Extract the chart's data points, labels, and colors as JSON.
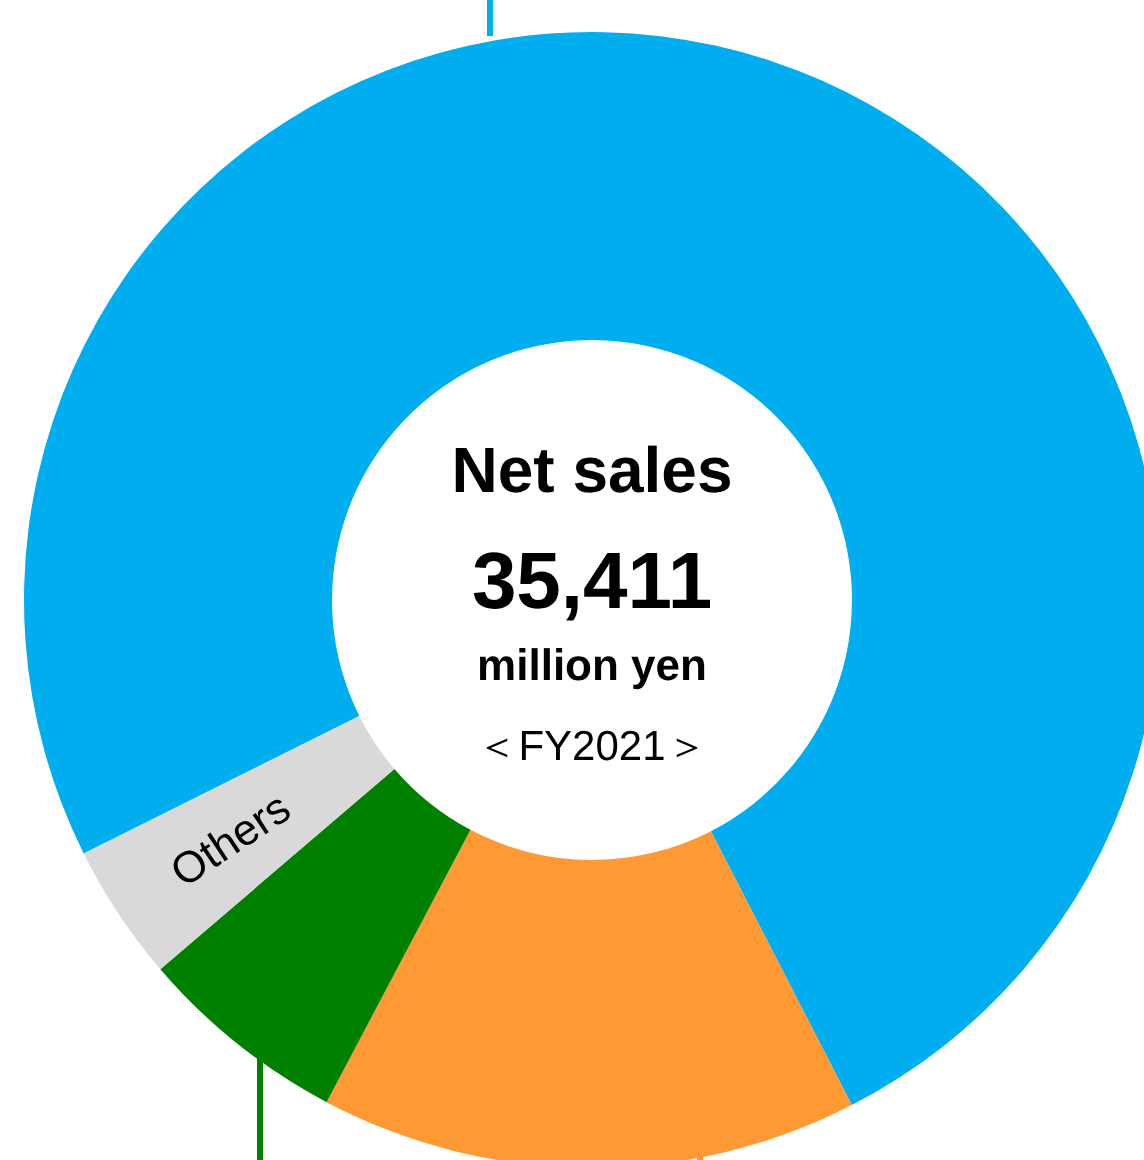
{
  "chart_data": {
    "type": "donut",
    "title": "Net sales",
    "categories": [
      null,
      null,
      null,
      "Others"
    ],
    "values": [
      74.8,
      15.3,
      6.0,
      3.9
    ],
    "colors": [
      "#00aeef",
      "#ff9933",
      "#008000",
      "#d9d9d9"
    ],
    "annotations": [
      "35,411",
      "million yen",
      "＜FY2021＞"
    ]
  }
}
